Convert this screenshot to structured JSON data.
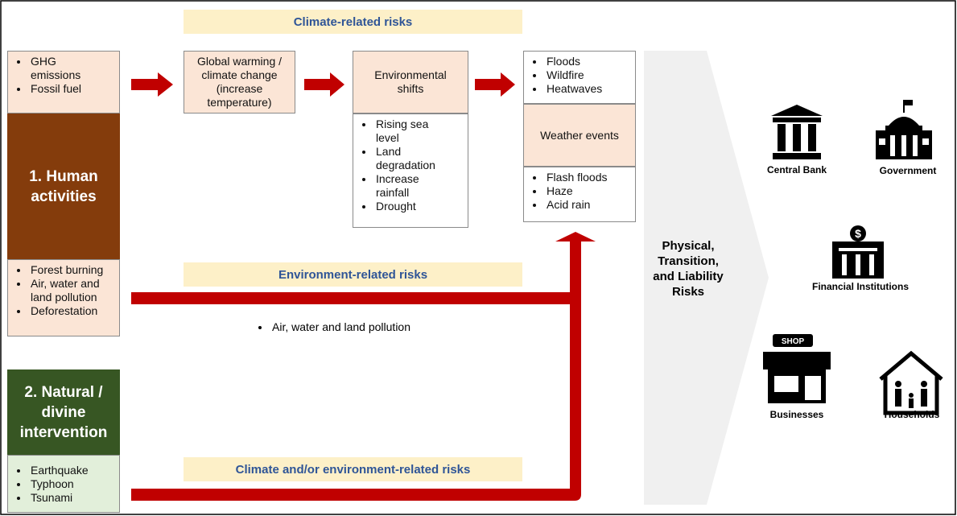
{
  "banners": {
    "climate": "Climate-related risks",
    "environment": "Environment-related risks",
    "combined": "Climate and/or environment-related risks"
  },
  "human": {
    "title": "1. Human activities",
    "climate_drivers": [
      "GHG emissions",
      "Fossil fuel"
    ],
    "environment_drivers": [
      "Forest burning",
      "Air, water and land pollution",
      "Deforestation"
    ]
  },
  "natural": {
    "title": "2. Natural / divine intervention",
    "events": [
      "Earthquake",
      "Typhoon",
      "Tsunami"
    ]
  },
  "chain": {
    "warming": "Global warming / climate change (increase temperature)",
    "shifts": {
      "title": "Environmental shifts",
      "items": [
        "Rising sea level",
        "Land degradation",
        "Increase rainfall",
        "Drought"
      ]
    }
  },
  "weather": {
    "title": "Weather events",
    "above": [
      "Floods",
      "Wildfire",
      "Heatwaves"
    ],
    "below": [
      "Flash floods",
      "Haze",
      "Acid rain"
    ]
  },
  "environment_note": "Air, water and land pollution",
  "risks": "Physical, Transition, and Liability Risks",
  "stakeholders": [
    "Central Bank",
    "Government",
    "Financial Institutions",
    "Businesses",
    "Households"
  ]
}
